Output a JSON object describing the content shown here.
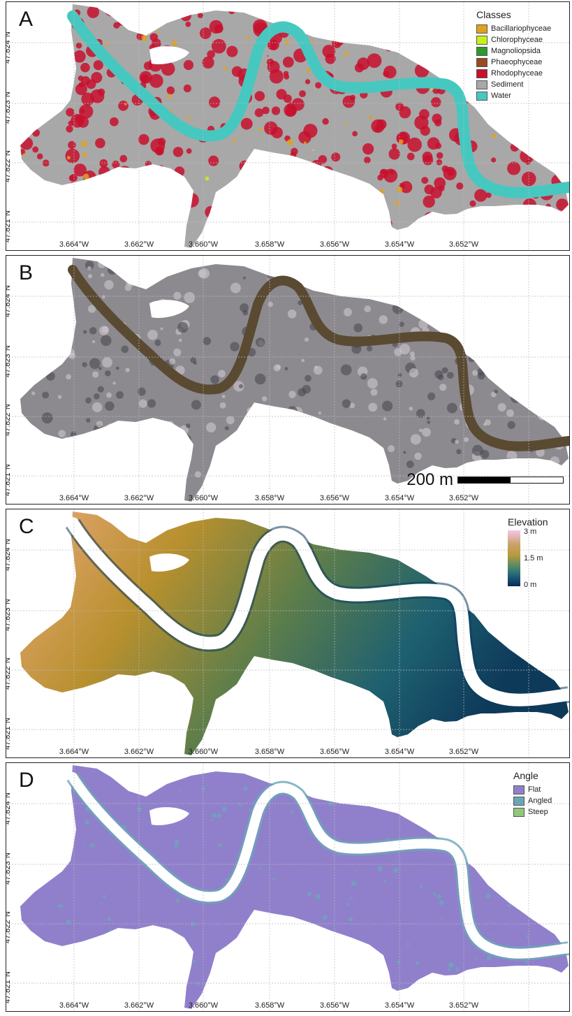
{
  "panels": [
    {
      "letter": "A",
      "kind": "classes"
    },
    {
      "letter": "B",
      "kind": "rgb"
    },
    {
      "letter": "C",
      "kind": "elevation"
    },
    {
      "letter": "D",
      "kind": "angle"
    }
  ],
  "lon_labels": [
    "3.664°W",
    "3.662°W",
    "3.660°W",
    "3.658°W",
    "3.656°W",
    "3.654°W",
    "3.652°W"
  ],
  "lat_labels": [
    "47.824°N",
    "47.823°N",
    "47.822°N",
    "47.821°N"
  ],
  "legend_classes": {
    "title": "Classes",
    "items": [
      {
        "label": "Bacillariophyceae",
        "color": "#e0a21e"
      },
      {
        "label": "Chlorophyceae",
        "color": "#c6f21a"
      },
      {
        "label": "Magnoliopsida",
        "color": "#2e9a28"
      },
      {
        "label": "Phaeophyceae",
        "color": "#9a4a1e"
      },
      {
        "label": "Rhodophyceae",
        "color": "#c8102e"
      },
      {
        "label": "Sediment",
        "color": "#a8a8a8"
      },
      {
        "label": "Water",
        "color": "#46c8c0"
      }
    ]
  },
  "scale_bar": {
    "label": "200 m"
  },
  "legend_elevation": {
    "title": "Elevation",
    "max": "3 m",
    "mid": "1.5 m",
    "min": "0 m"
  },
  "legend_angle": {
    "title": "Angle",
    "items": [
      {
        "label": "Flat",
        "color": "#9080cc"
      },
      {
        "label": "Angled",
        "color": "#6aa6b8"
      },
      {
        "label": "Steep",
        "color": "#90c878"
      }
    ]
  }
}
